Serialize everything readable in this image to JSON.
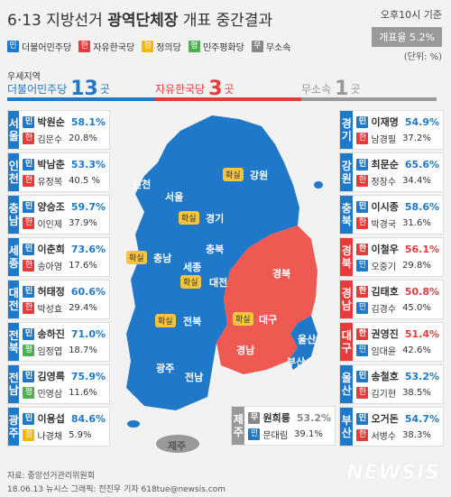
{
  "header": {
    "title_prefix": "6·13 지방선거 ",
    "title_bold": "광역단체장",
    "title_suffix": " 개표 중간결과",
    "time": "오후10시 기준",
    "rate_label": "개표율 5.2%",
    "unit": "(단위: %)"
  },
  "legend": [
    {
      "short": "민",
      "name": "더불어민주당",
      "color": "#1f78c8"
    },
    {
      "short": "한",
      "name": "자유한국당",
      "color": "#e63b3b"
    },
    {
      "short": "정",
      "name": "정의당",
      "color": "#f5b800"
    },
    {
      "short": "평",
      "name": "민주평화당",
      "color": "#4caf50"
    },
    {
      "short": "무",
      "name": "무소속",
      "color": "#888888"
    }
  ],
  "lead": {
    "title": "우세지역",
    "parties": [
      {
        "name": "더불어민주당",
        "count": "13",
        "suffix": "곳",
        "color": "#1f78c8"
      },
      {
        "name": "자유한국당",
        "count": "3",
        "suffix": "곳",
        "color": "#e63b3b"
      },
      {
        "name": "무소속",
        "count": "1",
        "suffix": "곳",
        "color": "#999999"
      }
    ]
  },
  "map": {
    "labels": [
      "인천",
      "서울",
      "강원",
      "경기",
      "충남",
      "충북",
      "세종",
      "대전",
      "경북",
      "전북",
      "대구",
      "울산",
      "경남",
      "부산",
      "광주",
      "전남",
      "제주"
    ],
    "confirm": "확실",
    "confirm_regions": [
      "강원",
      "경기",
      "충남",
      "대전",
      "전북",
      "대구"
    ]
  },
  "left_cards": [
    {
      "region": [
        "서",
        "울"
      ],
      "color": "#1f78c8",
      "c1": {
        "p": "민",
        "pc": "#1f78c8",
        "name": "박원순",
        "pct": "58.1%"
      },
      "c2": {
        "p": "한",
        "pc": "#e63b3b",
        "name": "김문수",
        "pct": "20.8%"
      }
    },
    {
      "region": [
        "인",
        "천"
      ],
      "color": "#1f78c8",
      "c1": {
        "p": "민",
        "pc": "#1f78c8",
        "name": "박남춘",
        "pct": "53.3%"
      },
      "c2": {
        "p": "한",
        "pc": "#e63b3b",
        "name": "유정복",
        "pct": "40.5 %"
      }
    },
    {
      "region": [
        "충",
        "남"
      ],
      "color": "#1f78c8",
      "c1": {
        "p": "민",
        "pc": "#1f78c8",
        "name": "양승조",
        "pct": "59.7%"
      },
      "c2": {
        "p": "한",
        "pc": "#e63b3b",
        "name": "이인제",
        "pct": "37.9%"
      }
    },
    {
      "region": [
        "세",
        "종"
      ],
      "color": "#1f78c8",
      "c1": {
        "p": "민",
        "pc": "#1f78c8",
        "name": "이춘희",
        "pct": "73.6%"
      },
      "c2": {
        "p": "한",
        "pc": "#e63b3b",
        "name": "송아영",
        "pct": "17.6%"
      }
    },
    {
      "region": [
        "대",
        "전"
      ],
      "color": "#1f78c8",
      "c1": {
        "p": "민",
        "pc": "#1f78c8",
        "name": "허태정",
        "pct": "60.6%"
      },
      "c2": {
        "p": "한",
        "pc": "#e63b3b",
        "name": "박성효",
        "pct": "29.4%"
      }
    },
    {
      "region": [
        "전",
        "북"
      ],
      "color": "#1f78c8",
      "c1": {
        "p": "민",
        "pc": "#1f78c8",
        "name": "송하진",
        "pct": "71.0%"
      },
      "c2": {
        "p": "평",
        "pc": "#4caf50",
        "name": "임정엽",
        "pct": "18.7%"
      }
    },
    {
      "region": [
        "전",
        "남"
      ],
      "color": "#1f78c8",
      "c1": {
        "p": "민",
        "pc": "#1f78c8",
        "name": "김영록",
        "pct": "75.9%"
      },
      "c2": {
        "p": "평",
        "pc": "#4caf50",
        "name": "민영삼",
        "pct": "11.6%"
      }
    },
    {
      "region": [
        "광",
        "주"
      ],
      "color": "#1f78c8",
      "c1": {
        "p": "민",
        "pc": "#1f78c8",
        "name": "이용섭",
        "pct": "84.6%"
      },
      "c2": {
        "p": "정",
        "pc": "#f5b800",
        "name": "나경채",
        "pct": "5.9%"
      }
    }
  ],
  "right_cards": [
    {
      "region": [
        "경",
        "기"
      ],
      "color": "#1f78c8",
      "c1": {
        "p": "민",
        "pc": "#1f78c8",
        "name": "이재명",
        "pct": "54.9%"
      },
      "c2": {
        "p": "한",
        "pc": "#e63b3b",
        "name": "남경필",
        "pct": "37.2%"
      }
    },
    {
      "region": [
        "강",
        "원"
      ],
      "color": "#1f78c8",
      "c1": {
        "p": "민",
        "pc": "#1f78c8",
        "name": "최문순",
        "pct": "65.6%"
      },
      "c2": {
        "p": "한",
        "pc": "#e63b3b",
        "name": "정창수",
        "pct": "34.4%"
      }
    },
    {
      "region": [
        "충",
        "북"
      ],
      "color": "#1f78c8",
      "c1": {
        "p": "민",
        "pc": "#1f78c8",
        "name": "이시종",
        "pct": "58.6%"
      },
      "c2": {
        "p": "한",
        "pc": "#e63b3b",
        "name": "박경국",
        "pct": "31.6%"
      }
    },
    {
      "region": [
        "경",
        "북"
      ],
      "color": "#e63b3b",
      "c1": {
        "p": "한",
        "pc": "#e63b3b",
        "name": "이철우",
        "pct": "56.1%"
      },
      "c2": {
        "p": "민",
        "pc": "#1f78c8",
        "name": "오중기",
        "pct": "29.8%"
      }
    },
    {
      "region": [
        "경",
        "남"
      ],
      "color": "#e63b3b",
      "c1": {
        "p": "한",
        "pc": "#e63b3b",
        "name": "김태호",
        "pct": "50.8%"
      },
      "c2": {
        "p": "민",
        "pc": "#1f78c8",
        "name": "김경수",
        "pct": "45.0%"
      }
    },
    {
      "region": [
        "대",
        "구"
      ],
      "color": "#e63b3b",
      "c1": {
        "p": "한",
        "pc": "#e63b3b",
        "name": "권영진",
        "pct": "51.4%"
      },
      "c2": {
        "p": "민",
        "pc": "#1f78c8",
        "name": "임대윤",
        "pct": "42.6%"
      }
    },
    {
      "region": [
        "울",
        "산"
      ],
      "color": "#1f78c8",
      "c1": {
        "p": "민",
        "pc": "#1f78c8",
        "name": "송철호",
        "pct": "53.2%"
      },
      "c2": {
        "p": "한",
        "pc": "#e63b3b",
        "name": "김기현",
        "pct": "38.5%"
      }
    },
    {
      "region": [
        "부",
        "산"
      ],
      "color": "#1f78c8",
      "c1": {
        "p": "민",
        "pc": "#1f78c8",
        "name": "오거돈",
        "pct": "54.7%"
      },
      "c2": {
        "p": "한",
        "pc": "#e63b3b",
        "name": "서병수",
        "pct": "38.3%"
      }
    }
  ],
  "jeju_card": {
    "region": [
      "제",
      "주"
    ],
    "color": "#999999",
    "c1": {
      "p": "무",
      "pc": "#888888",
      "name": "원희룡",
      "pct": "53.2%"
    },
    "c2": {
      "p": "민",
      "pc": "#1f78c8",
      "name": "문대림",
      "pct": "39.1%"
    }
  },
  "footer": {
    "source": "자료: 중앙선거관리위원회",
    "credit": "18.06.13 뉴시스 그래픽: 전진우 기자 618tue@newsis.com"
  },
  "logo": "NEWSIS"
}
